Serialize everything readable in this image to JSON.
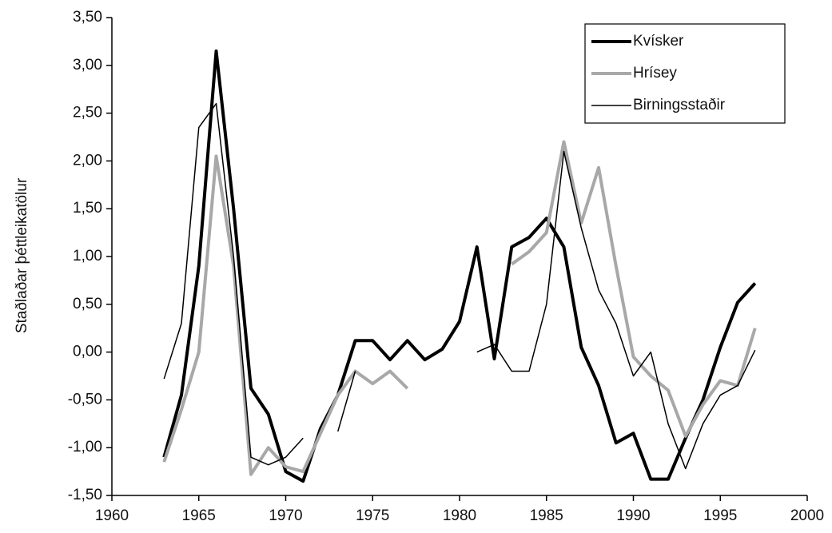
{
  "chart_data": {
    "type": "line",
    "y_label": "Staðlaðar þéttleikatölur",
    "x": [
      1963,
      1964,
      1965,
      1966,
      1967,
      1968,
      1969,
      1970,
      1971,
      1972,
      1973,
      1974,
      1975,
      1976,
      1977,
      1978,
      1979,
      1980,
      1981,
      1982,
      1983,
      1984,
      1985,
      1986,
      1987,
      1988,
      1989,
      1990,
      1991,
      1992,
      1993,
      1994,
      1995,
      1996,
      1997
    ],
    "series": [
      {
        "name": "Kvísker",
        "color": "#000000",
        "width": 4,
        "values": [
          -1.1,
          -0.45,
          0.9,
          3.15,
          1.5,
          -0.38,
          -0.65,
          -1.25,
          -1.35,
          -0.8,
          -0.45,
          0.12,
          0.12,
          -0.08,
          0.12,
          -0.08,
          0.03,
          0.32,
          1.1,
          -0.07,
          1.1,
          1.2,
          1.4,
          1.1,
          0.05,
          -0.35,
          -0.95,
          -0.85,
          -1.33,
          -1.33,
          -0.9,
          -0.5,
          0.05,
          0.52,
          0.72
        ]
      },
      {
        "name": "Hrísey",
        "color": "#a8a8a8",
        "width": 4,
        "values": [
          -1.15,
          -0.6,
          0.0,
          2.05,
          0.9,
          -1.28,
          -1.0,
          -1.2,
          -1.25,
          -0.85,
          -0.45,
          -0.2,
          -0.33,
          -0.2,
          -0.38,
          null,
          null,
          null,
          null,
          null,
          0.92,
          1.05,
          1.25,
          2.2,
          1.35,
          1.93,
          0.9,
          -0.05,
          -0.25,
          -0.4,
          -0.88,
          -0.55,
          -0.3,
          -0.35,
          0.25
        ]
      },
      {
        "name": "Birningsstaðir",
        "color": "#000000",
        "width": 1.5,
        "values": [
          -0.28,
          0.3,
          2.35,
          2.6,
          1.0,
          -1.1,
          -1.18,
          -1.1,
          -0.9,
          null,
          -0.83,
          -0.2,
          null,
          null,
          null,
          null,
          null,
          null,
          0.0,
          0.08,
          -0.2,
          -0.2,
          0.5,
          2.1,
          1.3,
          0.65,
          0.3,
          -0.25,
          0.0,
          -0.75,
          -1.22,
          -0.75,
          -0.45,
          -0.35,
          0.02
        ]
      }
    ],
    "xlim": [
      1960,
      2000
    ],
    "xticks": [
      1960,
      1965,
      1970,
      1975,
      1980,
      1985,
      1990,
      1995,
      2000
    ],
    "ylim": [
      -1.5,
      3.5
    ],
    "yticks": [
      {
        "value": -1.5,
        "label": "-1,50"
      },
      {
        "value": -1.0,
        "label": "-1,00"
      },
      {
        "value": -0.5,
        "label": "-0,50"
      },
      {
        "value": 0,
        "label": "0,00"
      },
      {
        "value": 0.5,
        "label": "0,50"
      },
      {
        "value": 1.0,
        "label": "1,00"
      },
      {
        "value": 1.5,
        "label": "1,50"
      },
      {
        "value": 2.0,
        "label": "2,00"
      },
      {
        "value": 2.5,
        "label": "2,50"
      },
      {
        "value": 3.0,
        "label": "3,00"
      },
      {
        "value": 3.5,
        "label": "3,50"
      }
    ],
    "legend": "top-right",
    "grid": false
  }
}
